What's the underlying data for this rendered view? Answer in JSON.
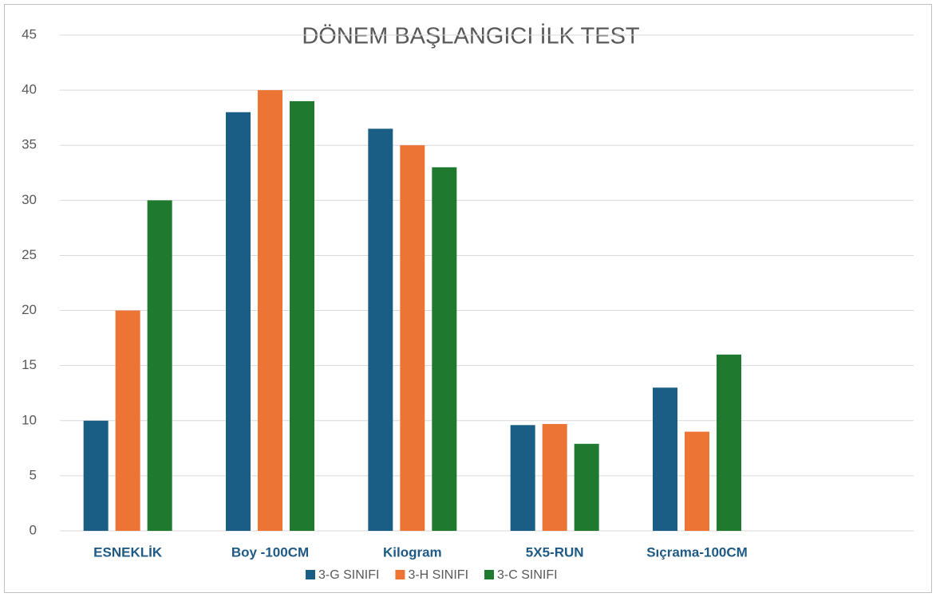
{
  "chart_data": {
    "type": "bar",
    "title": "DÖNEM BAŞLANGICI İLK TEST",
    "categories": [
      "ESNEKLİK",
      "Boy -100CM",
      "Kilogram",
      "5X5-RUN",
      "Sıçrama-100CM",
      null
    ],
    "series": [
      {
        "name": "3-G SINIFI",
        "color": "#1b5e85",
        "values": [
          10,
          38,
          36.5,
          9.6,
          13,
          null
        ]
      },
      {
        "name": "3-H SINIFI",
        "color": "#ec7535",
        "values": [
          20,
          40,
          35,
          9.7,
          9,
          null
        ]
      },
      {
        "name": "3-C SINIFI",
        "color": "#1f7a2f",
        "values": [
          30,
          39,
          33,
          7.9,
          16,
          null
        ]
      }
    ],
    "ylim": [
      0,
      45
    ],
    "yticks": [
      0,
      5,
      10,
      15,
      20,
      25,
      30,
      35,
      40,
      45
    ],
    "grid": true,
    "legend": "bottom"
  }
}
